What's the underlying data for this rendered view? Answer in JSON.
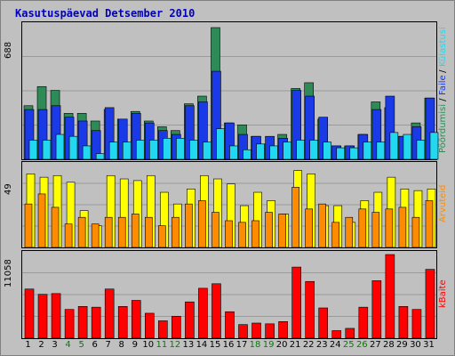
{
  "chart_data": {
    "type": "bar",
    "title": "Kasutuspäevad Detsember 2010",
    "x": [
      "1",
      "2",
      "3",
      "4",
      "5",
      "6",
      "7",
      "8",
      "9",
      "10",
      "11",
      "12",
      "13",
      "14",
      "15",
      "16",
      "17",
      "18",
      "19",
      "20",
      "21",
      "22",
      "23",
      "24",
      "25",
      "26",
      "27",
      "28",
      "29",
      "30",
      "31"
    ],
    "weekend_days": [
      "4",
      "5",
      "11",
      "12",
      "18",
      "19",
      "25",
      "26"
    ],
    "panels": [
      {
        "ymax_label": "688",
        "ylim": [
          0,
          688
        ],
        "series": [
          {
            "name": "Pöördumisi",
            "color": "#2e8b57",
            "values": [
              280,
              380,
              360,
              240,
              240,
              200,
              260,
              210,
              250,
              200,
              170,
              150,
              290,
              330,
              688,
              190,
              180,
              120,
              80,
              130,
              370,
              400,
              210,
              70,
              70,
              130,
              300,
              270,
              120,
              190,
              320
            ]
          },
          {
            "name": "Faile",
            "color": "#1a3ae8",
            "values": [
              260,
              260,
              280,
              220,
              200,
              150,
              270,
              210,
              240,
              190,
              150,
              130,
              280,
              300,
              460,
              190,
              130,
              120,
              120,
              110,
              360,
              330,
              220,
              70,
              70,
              130,
              260,
              330,
              120,
              170,
              320
            ]
          },
          {
            "name": "Külastusi",
            "color": "#22d8f0",
            "values": [
              100,
              100,
              130,
              120,
              70,
              30,
              90,
              90,
              100,
              100,
              110,
              110,
              100,
              90,
              160,
              70,
              50,
              80,
              70,
              90,
              100,
              100,
              90,
              60,
              60,
              90,
              90,
              140,
              130,
              100,
              140
            ]
          }
        ]
      },
      {
        "ymax_label": "49",
        "ylim": [
          0,
          49
        ],
        "series": [
          {
            "name": "Arvuteid",
            "color": "#ffff00",
            "values": [
              44,
              42,
              43,
              39,
              22,
              13,
              43,
              41,
              40,
              43,
              33,
              26,
              35,
              43,
              41,
              38,
              25,
              33,
              28,
              20,
              46,
              44,
              25,
              25,
              15,
              28,
              33,
              42,
              35,
              34,
              35
            ]
          },
          {
            "name": "Arvuteid",
            "color": "#ff8c00",
            "values": [
              26,
              32,
              24,
              14,
              18,
              14,
              18,
              18,
              20,
              18,
              13,
              18,
              26,
              28,
              21,
              16,
              15,
              16,
              21,
              20,
              36,
              23,
              26,
              15,
              18,
              23,
              21,
              23,
              24,
              18,
              28
            ]
          }
        ]
      },
      {
        "ymax_label": "11058",
        "ylim": [
          0,
          11058
        ],
        "series": [
          {
            "name": "kBaite",
            "color": "#ff0000",
            "values": [
              6500,
              5800,
              5900,
              3800,
              4200,
              4100,
              6500,
              4200,
              5000,
              3300,
              2300,
              2900,
              4800,
              6600,
              7200,
              3500,
              1800,
              2000,
              1900,
              2200,
              9400,
              7500,
              4000,
              1000,
              1300,
              4100,
              7600,
              11058,
              4200,
              3800,
              9100
            ]
          }
        ]
      }
    ],
    "legend_right": [
      {
        "label": "Pöördumisi",
        "color": "#2e8b57"
      },
      {
        "label": "Faile",
        "color": "#1a3ae8"
      },
      {
        "label": "Külastusi",
        "color": "#22d8f0"
      },
      {
        "label": "Arvuteid",
        "color": "#ff8c00"
      },
      {
        "label": "kBaite",
        "color": "#ff0000"
      }
    ],
    "grid": true,
    "colors": {
      "title": "#0000c0",
      "background": "#c0c0c0",
      "weekend_label": "#008000"
    }
  }
}
